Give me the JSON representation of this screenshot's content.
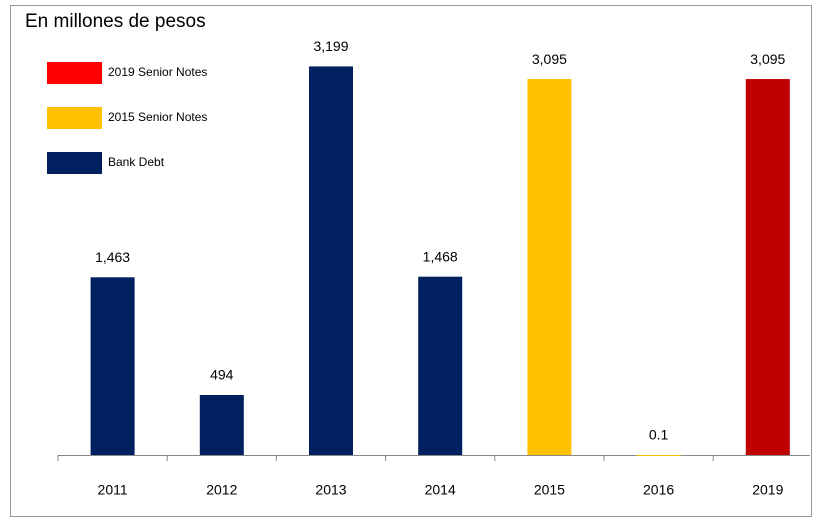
{
  "chart_data": {
    "type": "bar",
    "title": "En millones de pesos",
    "categories": [
      "2011",
      "2012",
      "2013",
      "2014",
      "2015",
      "2016",
      "2019"
    ],
    "ylim": [
      0,
      3400
    ],
    "series": [
      {
        "name": "2019 Senior Notes",
        "color": "#c00000",
        "legend_color": "#ff0000",
        "values": [
          null,
          null,
          null,
          null,
          null,
          null,
          3095
        ],
        "value_labels": [
          null,
          null,
          null,
          null,
          null,
          null,
          "3,095"
        ]
      },
      {
        "name": "2015 Senior Notes",
        "color": "#ffc000",
        "values": [
          null,
          null,
          null,
          null,
          3095,
          0.1,
          null
        ],
        "value_labels": [
          null,
          null,
          null,
          null,
          "3,095",
          "0.1",
          null
        ]
      },
      {
        "name": "Bank Debt",
        "color": "#002060",
        "values": [
          1463,
          494,
          3199,
          1468,
          null,
          null,
          null
        ],
        "value_labels": [
          "1,463",
          "494",
          "3,199",
          "1,468",
          null,
          null,
          null
        ]
      }
    ]
  }
}
